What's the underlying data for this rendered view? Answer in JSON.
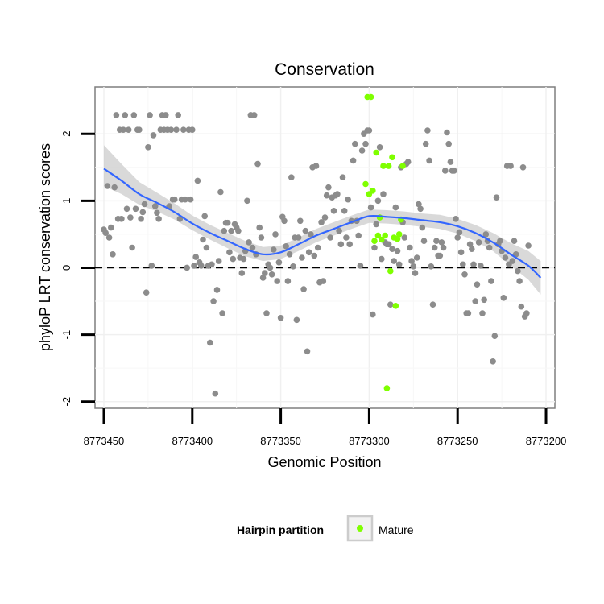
{
  "chart_data": {
    "type": "scatter",
    "title": "Conservation",
    "xlabel": "Genomic Position",
    "ylabel": "phyloP LRT conservation scores",
    "x_reversed": true,
    "xlim": [
      8773455,
      8773195
    ],
    "ylim": [
      -2.1,
      2.7
    ],
    "x_ticks": [
      8773450,
      8773400,
      8773350,
      8773300,
      8773250,
      8773200
    ],
    "x_tick_labels": [
      "8773450",
      "8773400",
      "8773350",
      "8773300",
      "8773250",
      "8773200"
    ],
    "y_ticks": [
      -2,
      -1,
      0,
      1,
      2
    ],
    "y_tick_labels": [
      "-2",
      "-1",
      "0",
      "1",
      "2"
    ],
    "grid": true,
    "reference_line": {
      "y": 0,
      "style": "dashed"
    },
    "legend": {
      "title": "Hairpin partition",
      "placement": "bottom",
      "entries": [
        "Mature"
      ]
    },
    "colors": {
      "other": "#8c8c8c",
      "mature": "#7fff00",
      "smooth": "#3366ff",
      "band": "#cccccc"
    },
    "series": [
      {
        "name": "",
        "color": "#8c8c8c",
        "points": [
          [
            8773450,
            0.57
          ],
          [
            8773449,
            0.52
          ],
          [
            8773448,
            1.22
          ],
          [
            8773447,
            0.45
          ],
          [
            8773446,
            0.6
          ],
          [
            8773445,
            0.2
          ],
          [
            8773444,
            1.2
          ],
          [
            8773443,
            2.28
          ],
          [
            8773442,
            0.73
          ],
          [
            8773441,
            2.06
          ],
          [
            8773440,
            0.73
          ],
          [
            8773439,
            2.06
          ],
          [
            8773438,
            2.28
          ],
          [
            8773437,
            0.88
          ],
          [
            8773436,
            2.06
          ],
          [
            8773435,
            0.75
          ],
          [
            8773434,
            0.3
          ],
          [
            8773433,
            2.28
          ],
          [
            8773432,
            0.88
          ],
          [
            8773431,
            2.06
          ],
          [
            8773430,
            2.06
          ],
          [
            8773429,
            0.73
          ],
          [
            8773428,
            0.83
          ],
          [
            8773427,
            0.95
          ],
          [
            8773426,
            -0.37
          ],
          [
            8773425,
            1.8
          ],
          [
            8773424,
            2.28
          ],
          [
            8773423,
            0.03
          ],
          [
            8773422,
            1.98
          ],
          [
            8773421,
            0.92
          ],
          [
            8773420,
            0.82
          ],
          [
            8773419,
            0.73
          ],
          [
            8773418,
            2.06
          ],
          [
            8773417,
            2.28
          ],
          [
            8773416,
            2.06
          ],
          [
            8773415,
            2.28
          ],
          [
            8773414,
            2.06
          ],
          [
            8773413,
            0.92
          ],
          [
            8773412,
            2.06
          ],
          [
            8773411,
            1.02
          ],
          [
            8773410,
            1.02
          ],
          [
            8773409,
            2.06
          ],
          [
            8773408,
            2.28
          ],
          [
            8773407,
            0.73
          ],
          [
            8773406,
            1.02
          ],
          [
            8773405,
            2.06
          ],
          [
            8773404,
            1.02
          ],
          [
            8773403,
            0.0
          ],
          [
            8773402,
            2.06
          ],
          [
            8773401,
            1.02
          ],
          [
            8773400,
            2.06
          ],
          [
            8773399,
            0.03
          ],
          [
            8773398,
            0.16
          ],
          [
            8773397,
            1.3
          ],
          [
            8773396,
            0.08
          ],
          [
            8773395,
            0.03
          ],
          [
            8773394,
            0.42
          ],
          [
            8773393,
            0.77
          ],
          [
            8773392,
            0.3
          ],
          [
            8773391,
            0.03
          ],
          [
            8773390,
            -1.12
          ],
          [
            8773389,
            0.05
          ],
          [
            8773388,
            -0.5
          ],
          [
            8773387,
            -1.88
          ],
          [
            8773386,
            -0.33
          ],
          [
            8773385,
            0.1
          ],
          [
            8773384,
            1.13
          ],
          [
            8773383,
            -0.68
          ],
          [
            8773382,
            0.55
          ],
          [
            8773381,
            0.67
          ],
          [
            8773380,
            0.67
          ],
          [
            8773379,
            0.23
          ],
          [
            8773378,
            0.55
          ],
          [
            8773377,
            0.13
          ],
          [
            8773376,
            0.65
          ],
          [
            8773375,
            0.6
          ],
          [
            8773374,
            0.55
          ],
          [
            8773373,
            0.15
          ],
          [
            8773372,
            -0.08
          ],
          [
            8773371,
            0.13
          ],
          [
            8773370,
            0.25
          ],
          [
            8773369,
            1.0
          ],
          [
            8773368,
            0.38
          ],
          [
            8773367,
            2.28
          ],
          [
            8773366,
            0.3
          ],
          [
            8773365,
            2.28
          ],
          [
            8773364,
            0.2
          ],
          [
            8773363,
            1.55
          ],
          [
            8773362,
            0.6
          ],
          [
            8773361,
            0.45
          ],
          [
            8773360,
            -0.15
          ],
          [
            8773359,
            -0.08
          ],
          [
            8773358,
            -0.68
          ],
          [
            8773357,
            0.05
          ],
          [
            8773356,
            0.0
          ],
          [
            8773355,
            -0.1
          ],
          [
            8773354,
            0.27
          ],
          [
            8773353,
            0.5
          ],
          [
            8773352,
            -0.2
          ],
          [
            8773351,
            0.08
          ],
          [
            8773350,
            -0.75
          ],
          [
            8773349,
            0.76
          ],
          [
            8773348,
            0.7
          ],
          [
            8773347,
            0.32
          ],
          [
            8773346,
            -0.2
          ],
          [
            8773345,
            0.2
          ],
          [
            8773344,
            1.35
          ],
          [
            8773343,
            0.02
          ],
          [
            8773342,
            0.45
          ],
          [
            8773341,
            -0.78
          ],
          [
            8773340,
            0.45
          ],
          [
            8773339,
            0.7
          ],
          [
            8773338,
            0.15
          ],
          [
            8773337,
            -0.32
          ],
          [
            8773336,
            0.55
          ],
          [
            8773335,
            -1.25
          ],
          [
            8773334,
            0.23
          ],
          [
            8773333,
            0.5
          ],
          [
            8773332,
            1.5
          ],
          [
            8773331,
            0.18
          ],
          [
            8773330,
            1.52
          ],
          [
            8773329,
            0.3
          ],
          [
            8773328,
            -0.22
          ],
          [
            8773327,
            0.68
          ],
          [
            8773326,
            -0.2
          ],
          [
            8773325,
            0.75
          ],
          [
            8773324,
            1.08
          ],
          [
            8773323,
            1.2
          ],
          [
            8773322,
            0.45
          ],
          [
            8773321,
            1.05
          ],
          [
            8773320,
            0.85
          ],
          [
            8773319,
            1.08
          ],
          [
            8773318,
            1.1
          ],
          [
            8773317,
            0.55
          ],
          [
            8773316,
            0.35
          ],
          [
            8773315,
            1.35
          ],
          [
            8773314,
            0.85
          ],
          [
            8773313,
            0.45
          ],
          [
            8773312,
            1.02
          ],
          [
            8773311,
            0.35
          ],
          [
            8773310,
            0.7
          ],
          [
            8773309,
            1.6
          ],
          [
            8773308,
            1.85
          ],
          [
            8773307,
            0.7
          ],
          [
            8773306,
            0.48
          ],
          [
            8773305,
            0.03
          ],
          [
            8773304,
            1.75
          ],
          [
            8773303,
            2.0
          ],
          [
            8773302,
            1.85
          ],
          [
            8773301,
            2.05
          ],
          [
            8773300,
            2.05
          ],
          [
            8773299,
            0.9
          ],
          [
            8773298,
            -0.7
          ],
          [
            8773297,
            0.3
          ],
          [
            8773296,
            0.65
          ],
          [
            8773295,
            1.0
          ],
          [
            8773294,
            1.8
          ],
          [
            8773293,
            0.13
          ],
          [
            8773292,
            1.1
          ],
          [
            8773291,
            0.38
          ],
          [
            8773290,
            0.35
          ],
          [
            8773289,
            0.35
          ],
          [
            8773288,
            -0.55
          ],
          [
            8773287,
            0.28
          ],
          [
            8773286,
            0.1
          ],
          [
            8773285,
            0.9
          ],
          [
            8773284,
            0.25
          ],
          [
            8773283,
            0.05
          ],
          [
            8773282,
            1.5
          ],
          [
            8773281,
            0.68
          ],
          [
            8773280,
            0.45
          ],
          [
            8773279,
            1.55
          ],
          [
            8773278,
            1.58
          ],
          [
            8773277,
            0.3
          ],
          [
            8773276,
            0.1
          ],
          [
            8773275,
            0.02
          ],
          [
            8773274,
            -0.08
          ],
          [
            8773273,
            0.15
          ],
          [
            8773272,
            0.95
          ],
          [
            8773271,
            0.88
          ],
          [
            8773270,
            0.6
          ],
          [
            8773269,
            0.4
          ],
          [
            8773268,
            1.85
          ],
          [
            8773267,
            2.05
          ],
          [
            8773266,
            1.6
          ],
          [
            8773265,
            0.02
          ],
          [
            8773264,
            -0.55
          ],
          [
            8773263,
            0.3
          ],
          [
            8773262,
            0.4
          ],
          [
            8773261,
            0.18
          ],
          [
            8773260,
            0.18
          ],
          [
            8773259,
            0.38
          ],
          [
            8773258,
            0.3
          ],
          [
            8773257,
            1.45
          ],
          [
            8773256,
            2.02
          ],
          [
            8773255,
            1.85
          ],
          [
            8773254,
            1.58
          ],
          [
            8773253,
            1.45
          ],
          [
            8773252,
            1.45
          ],
          [
            8773251,
            0.73
          ],
          [
            8773250,
            0.45
          ],
          [
            8773249,
            0.53
          ],
          [
            8773248,
            0.23
          ],
          [
            8773247,
            0.05
          ],
          [
            8773246,
            -0.1
          ],
          [
            8773245,
            -0.68
          ],
          [
            8773244,
            -0.68
          ],
          [
            8773243,
            0.35
          ],
          [
            8773242,
            0.28
          ],
          [
            8773241,
            0.05
          ],
          [
            8773240,
            -0.5
          ],
          [
            8773239,
            -0.25
          ],
          [
            8773238,
            0.38
          ],
          [
            8773237,
            0.03
          ],
          [
            8773236,
            -0.68
          ],
          [
            8773235,
            -0.48
          ],
          [
            8773234,
            0.5
          ],
          [
            8773233,
            0.4
          ],
          [
            8773232,
            0.3
          ],
          [
            8773231,
            -0.2
          ],
          [
            8773230,
            -1.4
          ],
          [
            8773229,
            -1.02
          ],
          [
            8773228,
            1.05
          ],
          [
            8773227,
            0.35
          ],
          [
            8773226,
            0.4
          ],
          [
            8773225,
            0.25
          ],
          [
            8773224,
            -0.45
          ],
          [
            8773223,
            0.15
          ],
          [
            8773222,
            1.52
          ],
          [
            8773221,
            0.05
          ],
          [
            8773220,
            1.52
          ],
          [
            8773219,
            0.1
          ],
          [
            8773218,
            0.4
          ],
          [
            8773217,
            0.2
          ],
          [
            8773216,
            -0.05
          ],
          [
            8773215,
            -0.2
          ],
          [
            8773214,
            -0.58
          ],
          [
            8773213,
            1.5
          ],
          [
            8773212,
            -0.73
          ],
          [
            8773211,
            -0.68
          ],
          [
            8773210,
            0.33
          ]
        ]
      },
      {
        "name": "Mature",
        "color": "#7fff00",
        "points": [
          [
            8773302,
            1.25
          ],
          [
            8773301,
            2.55
          ],
          [
            8773300,
            1.1
          ],
          [
            8773299,
            2.55
          ],
          [
            8773298,
            1.15
          ],
          [
            8773297,
            0.4
          ],
          [
            8773296,
            1.72
          ],
          [
            8773295,
            0.48
          ],
          [
            8773294,
            0.75
          ],
          [
            8773293,
            0.42
          ],
          [
            8773292,
            1.52
          ],
          [
            8773291,
            0.48
          ],
          [
            8773290,
            -1.8
          ],
          [
            8773289,
            1.52
          ],
          [
            8773288,
            -0.05
          ],
          [
            8773287,
            1.65
          ],
          [
            8773286,
            0.45
          ],
          [
            8773285,
            -0.57
          ],
          [
            8773284,
            0.43
          ],
          [
            8773283,
            0.5
          ],
          [
            8773282,
            0.72
          ],
          [
            8773281,
            1.52
          ]
        ]
      }
    ],
    "smooth": {
      "x": [
        8773450,
        8773440,
        8773430,
        8773420,
        8773410,
        8773400,
        8773390,
        8773380,
        8773370,
        8773360,
        8773350,
        8773340,
        8773330,
        8773320,
        8773310,
        8773300,
        8773290,
        8773280,
        8773270,
        8773260,
        8773250,
        8773240,
        8773230,
        8773220,
        8773210,
        8773203
      ],
      "y": [
        1.48,
        1.3,
        1.1,
        0.97,
        0.83,
        0.66,
        0.52,
        0.4,
        0.28,
        0.2,
        0.23,
        0.35,
        0.48,
        0.58,
        0.68,
        0.77,
        0.76,
        0.74,
        0.71,
        0.68,
        0.62,
        0.52,
        0.38,
        0.2,
        0.03,
        -0.15
      ],
      "lower": [
        1.22,
        1.1,
        0.94,
        0.84,
        0.72,
        0.56,
        0.42,
        0.29,
        0.17,
        0.1,
        0.13,
        0.25,
        0.38,
        0.48,
        0.58,
        0.67,
        0.66,
        0.64,
        0.61,
        0.58,
        0.51,
        0.4,
        0.25,
        0.03,
        -0.18,
        -0.4
      ],
      "upper": [
        1.83,
        1.55,
        1.28,
        1.12,
        0.96,
        0.78,
        0.64,
        0.52,
        0.4,
        0.31,
        0.33,
        0.45,
        0.58,
        0.68,
        0.78,
        0.87,
        0.86,
        0.84,
        0.81,
        0.79,
        0.73,
        0.64,
        0.52,
        0.37,
        0.25,
        0.1
      ]
    }
  }
}
